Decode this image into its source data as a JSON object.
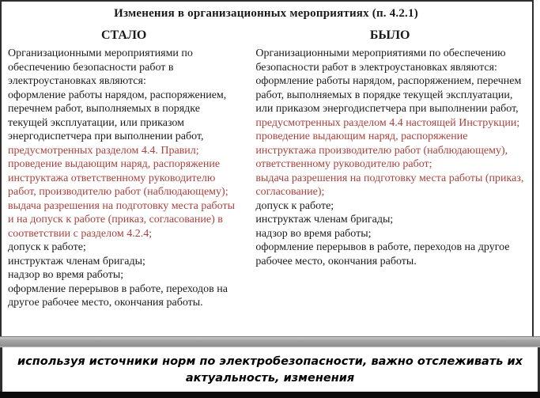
{
  "colors": {
    "red_text": "#a9413c",
    "black_text": "#1a1a1a",
    "gray_divider": "#9a9a9a",
    "bottom_bar": "#0b0b0b",
    "border": "#2e2e2e"
  },
  "title": "Изменения  в организационных мероприятиях (п. 4.2.1)",
  "columns": {
    "left": {
      "header": "СТАЛО",
      "lines": [
        {
          "text": "Организационными  мероприятиями по обеспечению безопасности работ в электроустановках являются:",
          "color": "black"
        },
        {
          "text": "оформление работы нарядом, распоряжением, перечнем работ, выполняемых в порядке текущей эксплуатации,  или приказом энергодиспетчера при выполнении работ,",
          "color": "black"
        },
        {
          "text": "предусмотренных разделом 4.4. Правил;",
          "color": "red"
        },
        {
          "text": "проведение выдающим наряд, распоряжение инструктажа ответственному руководителю работ, производителю работ (наблюдающему);",
          "color": "red"
        },
        {
          "text": "выдача разрешения на подготовку места работы и на допуск к работе (приказ, согласование) в соответствии с разделом 4.2.4;",
          "color": "red"
        },
        {
          "text": "допуск к работе;",
          "color": "black"
        },
        {
          "text": "инструктаж членам бригады;",
          "color": "black"
        },
        {
          "text": "надзор во время работы;",
          "color": "black"
        },
        {
          "text": "оформление перерывов в работе, переходов на другое рабочее место, окончания работы.",
          "color": "black"
        }
      ]
    },
    "right": {
      "header": "БЫЛО",
      "lines": [
        {
          "text": "Организационными  мероприятиями по обеспечению безопасности работ в электроустановках являются:",
          "color": "black"
        },
        {
          "text": "оформление работы нарядом, распоряжением, перечнем работ, выполняемых в порядке текущей эксплуатации,  или приказом энергодиспетчера при выполнении работ,",
          "color": "black"
        },
        {
          "text": "предусмотренных разделом 4.4 настоящей Инструкции;",
          "color": "red"
        },
        {
          "text": "проведение выдающим наряд, распоряжение инструктажа производителю работ (наблюдающему), ответственному руководителю работ;",
          "color": "red"
        },
        {
          "text": "выдача разрешения на подготовку места работы (приказ, согласование);",
          "color": "red"
        },
        {
          "text": "допуск к работе;",
          "color": "black"
        },
        {
          "text": "инструктаж членам бригады;",
          "color": "black"
        },
        {
          "text": "надзор во время работы;",
          "color": "black"
        },
        {
          "text": "оформление перерывов в работе, переходов на другое рабочее место, окончания работы.",
          "color": "black"
        }
      ]
    }
  },
  "footer": {
    "note": "используя источники норм по электробезопасности, важно отслеживать их актуальность, изменения"
  }
}
